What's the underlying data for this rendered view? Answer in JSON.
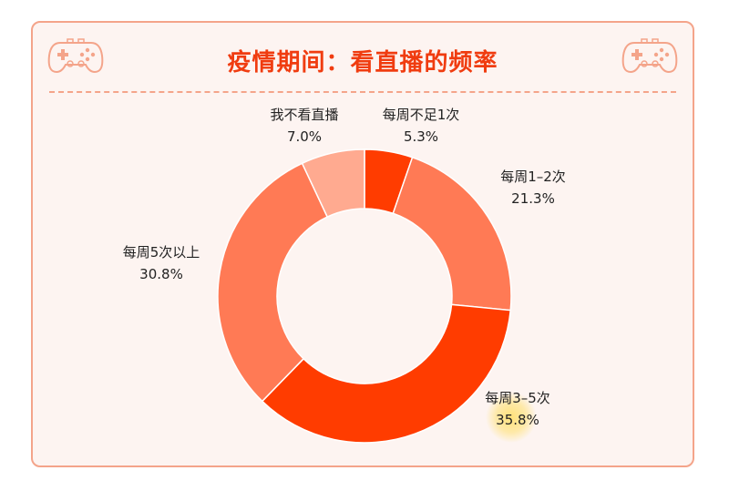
{
  "title": "疫情期间：看直播的频率",
  "icons": {
    "left": "gamepad-icon",
    "right": "gamepad-icon"
  },
  "colors": {
    "accent": "#f03c10",
    "border": "#f4a48a",
    "background": "#fdf4f1"
  },
  "chart_data": {
    "type": "pie",
    "donut": true,
    "categories": [
      "每周不足1次",
      "每周1–2次",
      "每周3–5次",
      "每周5次以上",
      "我不看直播"
    ],
    "values": [
      5.3,
      21.3,
      35.8,
      30.8,
      7.0
    ],
    "value_labels": [
      "5.3%",
      "21.3%",
      "35.8%",
      "30.8%",
      "7.0%"
    ],
    "colors": [
      "#ff3c00",
      "#ff7a55",
      "#ff3c00",
      "#ff7a55",
      "#ffaa90"
    ],
    "highlighted": "每周3–5次",
    "title": "疫情期间：看直播的频率"
  }
}
